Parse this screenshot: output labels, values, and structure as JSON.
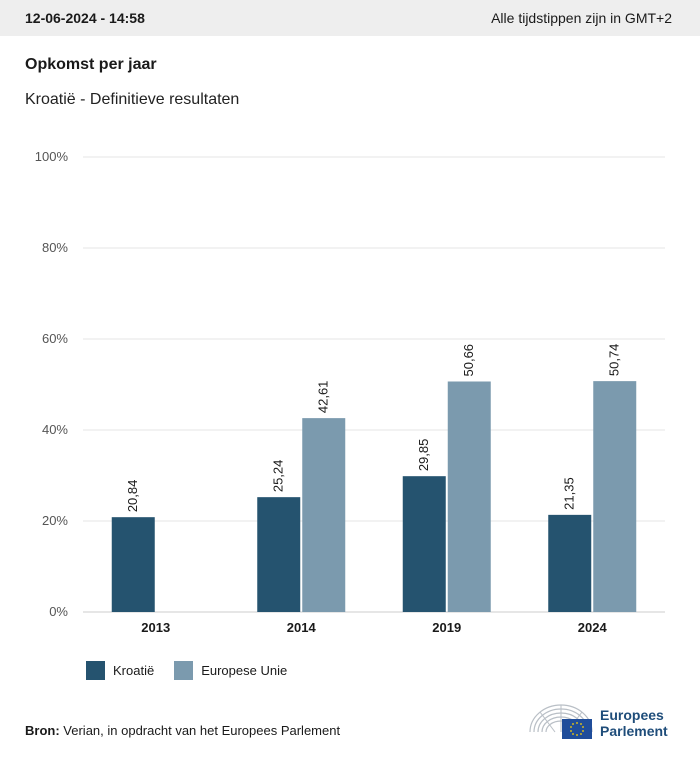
{
  "header": {
    "timestamp": "12-06-2024 - 14:58",
    "timezone_note": "Alle tijdstippen zijn in GMT+2"
  },
  "title": "Opkomst per jaar",
  "subtitle": "Kroatië - Definitieve resultaten",
  "chart_data": {
    "type": "bar",
    "categories": [
      "2013",
      "2014",
      "2019",
      "2024"
    ],
    "series": [
      {
        "name": "Kroatië",
        "color": "#25536f",
        "values": [
          20.84,
          25.24,
          29.85,
          21.35
        ],
        "labels": [
          "20,84",
          "25,24",
          "29,85",
          "21,35"
        ]
      },
      {
        "name": "Europese Unie",
        "color": "#7b9aae",
        "values": [
          null,
          42.61,
          50.66,
          50.74
        ],
        "labels": [
          "",
          "42,61",
          "50,66",
          "50,74"
        ]
      }
    ],
    "ylim": [
      0,
      100
    ],
    "yticks": [
      0,
      20,
      40,
      60,
      80,
      100
    ],
    "ytick_labels": [
      "0%",
      "20%",
      "40%",
      "60%",
      "80%",
      "100%"
    ],
    "grid": true,
    "legend_position": "bottom-left"
  },
  "source": {
    "label": "Bron:",
    "text": "Verian, in opdracht van het Europees Parlement"
  },
  "logo": {
    "line1": "Europees",
    "line2": "Parlement",
    "icon": "eu-parliament-hemicycle-icon"
  }
}
